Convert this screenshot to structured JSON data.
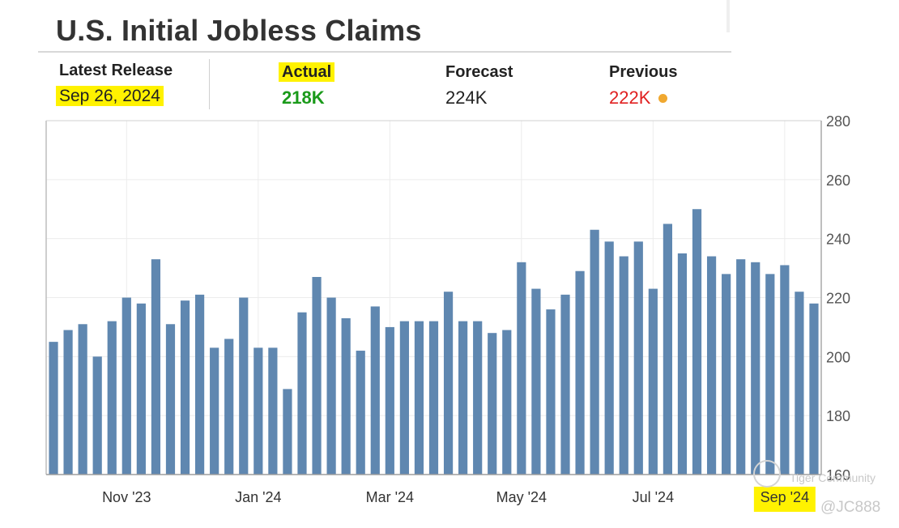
{
  "title": "U.S. Initial Jobless Claims",
  "summary": {
    "latest_release_label": "Latest Release",
    "latest_release_date": "Sep 26, 2024",
    "actual_label": "Actual",
    "actual_value": "218K",
    "forecast_label": "Forecast",
    "forecast_value": "224K",
    "previous_label": "Previous",
    "previous_value": "222K"
  },
  "colors": {
    "bar": "#5f87b0",
    "actual_green": "#1a9a1a",
    "previous_red": "#e02020",
    "highlight": "#fff200",
    "dot": "#f0a830"
  },
  "watermark": {
    "community": "Tiger Community",
    "handle": "@JC888"
  },
  "chart_data": {
    "type": "bar",
    "title": "U.S. Initial Jobless Claims",
    "xlabel": "",
    "ylabel": "",
    "ylim": [
      160,
      280
    ],
    "yticks": [
      160,
      180,
      200,
      220,
      240,
      260,
      280
    ],
    "grid": true,
    "y_axis_side": "right",
    "x_tick_labels": [
      {
        "label": "Nov '23",
        "index": 5
      },
      {
        "label": "Jan '24",
        "index": 14
      },
      {
        "label": "Mar '24",
        "index": 23
      },
      {
        "label": "May '24",
        "index": 32
      },
      {
        "label": "Jul '24",
        "index": 41
      },
      {
        "label": "Sep '24",
        "index": 50
      }
    ],
    "values": [
      205,
      209,
      211,
      200,
      212,
      220,
      218,
      233,
      211,
      219,
      221,
      203,
      206,
      220,
      203,
      203,
      189,
      215,
      227,
      220,
      213,
      202,
      217,
      210,
      212,
      212,
      212,
      222,
      212,
      212,
      208,
      209,
      232,
      223,
      216,
      221,
      229,
      243,
      239,
      234,
      239,
      223,
      245,
      235,
      250,
      234,
      228,
      233,
      232,
      228,
      231,
      222,
      218
    ]
  }
}
